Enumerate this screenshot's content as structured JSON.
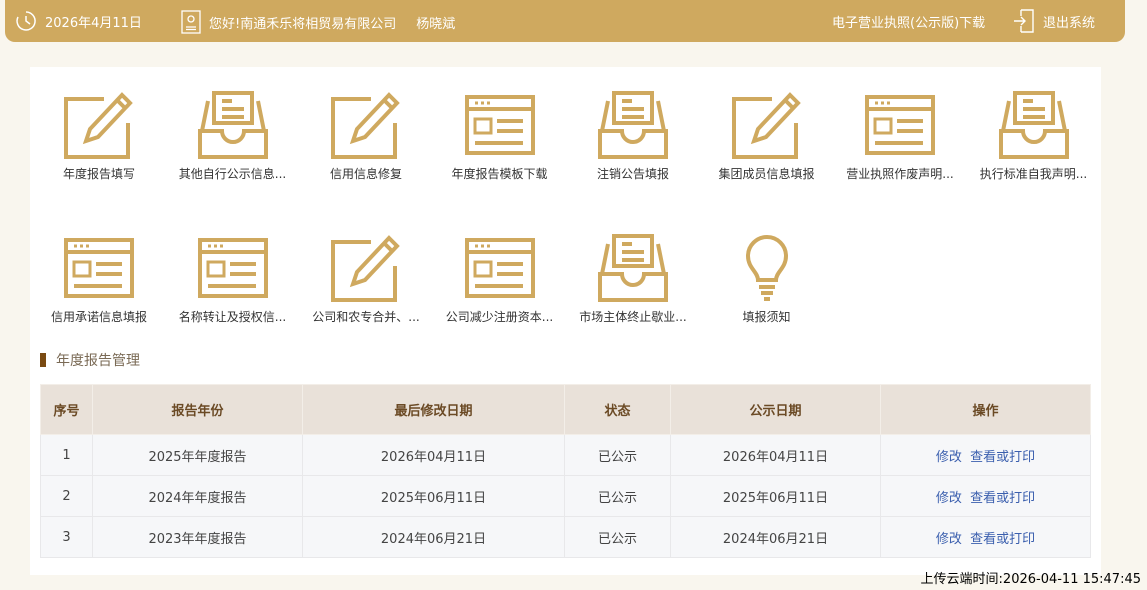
{
  "header": {
    "date": "2026年4月11日",
    "greeting": "您好!南通禾乐将相贸易有限公司",
    "user": "杨晓斌",
    "license_download": "电子营业执照(公示版)下载",
    "logout": "退出系统"
  },
  "accent_color": "#cfa95f",
  "tiles": [
    {
      "label": "年度报告填写",
      "icon": "pencil-icon"
    },
    {
      "label": "其他自行公示信息...",
      "icon": "inbox-icon"
    },
    {
      "label": "信用信息修复",
      "icon": "pencil-icon"
    },
    {
      "label": "年度报告模板下载",
      "icon": "window-icon"
    },
    {
      "label": "注销公告填报",
      "icon": "inbox-icon"
    },
    {
      "label": "集团成员信息填报",
      "icon": "pencil-icon"
    },
    {
      "label": "营业执照作废声明...",
      "icon": "window-icon"
    },
    {
      "label": "执行标准自我声明...",
      "icon": "inbox-icon"
    },
    {
      "label": "信用承诺信息填报",
      "icon": "window-icon"
    },
    {
      "label": "名称转让及授权信...",
      "icon": "window-icon"
    },
    {
      "label": "公司和农专合并、...",
      "icon": "pencil-icon"
    },
    {
      "label": "公司减少注册资本...",
      "icon": "window-icon"
    },
    {
      "label": "市场主体终止歇业...",
      "icon": "inbox-icon"
    },
    {
      "label": "填报须知",
      "icon": "bulb-icon"
    }
  ],
  "section_title": "年度报告管理",
  "table": {
    "headers": [
      "序号",
      "报告年份",
      "最后修改日期",
      "状态",
      "公示日期",
      "操作"
    ],
    "rows": [
      {
        "no": "1",
        "year": "2025年年度报告",
        "modified": "2026年04月11日",
        "status": "已公示",
        "published": "2026年04月11日",
        "edit": "修改",
        "view": "查看或打印"
      },
      {
        "no": "2",
        "year": "2024年年度报告",
        "modified": "2025年06月11日",
        "status": "已公示",
        "published": "2025年06月11日",
        "edit": "修改",
        "view": "查看或打印"
      },
      {
        "no": "3",
        "year": "2023年年度报告",
        "modified": "2024年06月21日",
        "status": "已公示",
        "published": "2024年06月21日",
        "edit": "修改",
        "view": "查看或打印"
      }
    ]
  },
  "footer": "上传云端时间:2026-04-11 15:47:45"
}
